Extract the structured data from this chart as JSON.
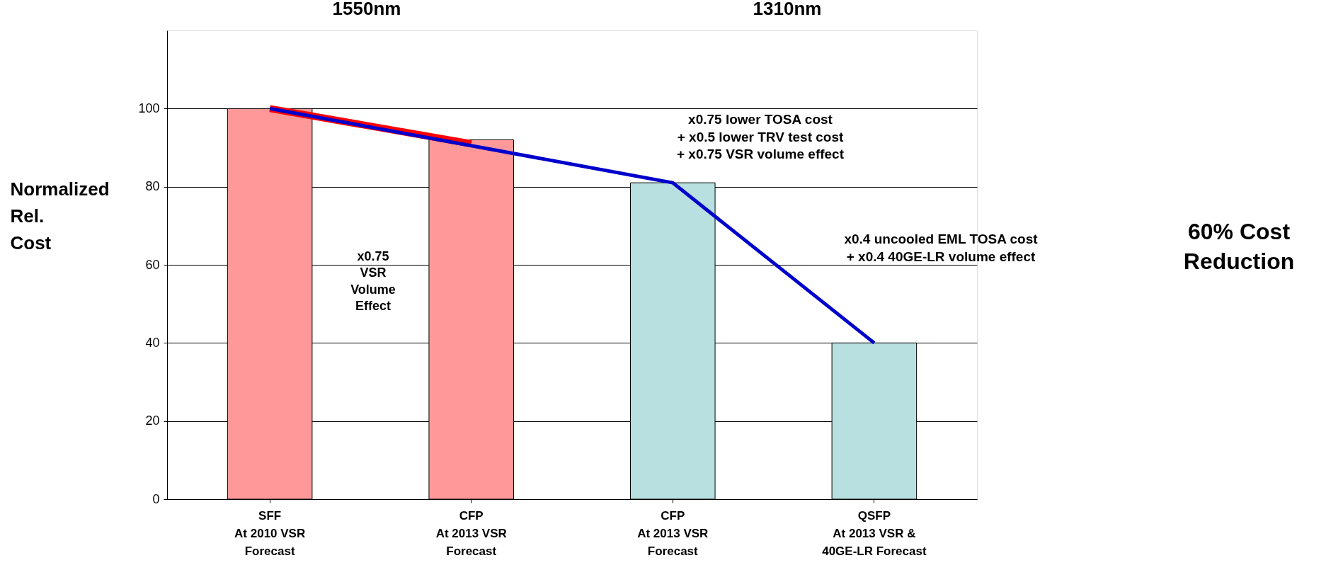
{
  "chart_data": {
    "type": "bar",
    "categories": [
      "SFF\nAt 2010 VSR\nForecast",
      "CFP\nAt 2013 VSR\nForecast",
      "CFP\nAt 2013 VSR\nForecast",
      "QSFP\nAt 2013 VSR &\n40GE-LR Forecast"
    ],
    "values": [
      100,
      92,
      81,
      40
    ],
    "colors": [
      "#ff9999",
      "#ff9999",
      "#b8e0e0",
      "#b8e0e0"
    ],
    "series": [
      {
        "type": "line",
        "color": "#ff0000",
        "values": [
          100,
          91,
          null,
          null
        ]
      },
      {
        "type": "line",
        "color": "#0000cc",
        "values": [
          100,
          null,
          81,
          40
        ]
      }
    ],
    "ylabel": "Normalized Rel. Cost",
    "ylim": [
      0,
      120
    ],
    "yticks": [
      0,
      20,
      40,
      60,
      80,
      100
    ],
    "grid": "y",
    "annotations": [
      "1550nm",
      "1310nm",
      "x0.75\nVSR\nVolume\nEffect",
      "x0.75 lower TOSA cost\n+ x0.5 lower TRV test cost\n+ x0.75 VSR volume effect",
      "x0.4 uncooled EML TOSA cost\n+ x0.4 40GE-LR volume effect",
      "60% Cost\nReduction"
    ]
  }
}
